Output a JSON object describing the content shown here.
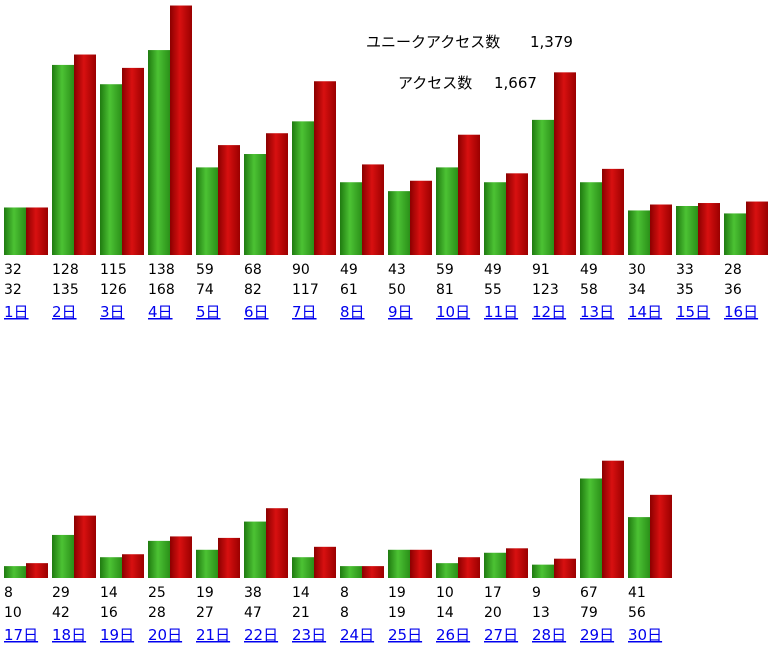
{
  "summary": {
    "unique_label": "ユニークアクセス数",
    "unique_total": "1,379",
    "access_label": "アクセス数",
    "access_total": "1,667"
  },
  "colors": {
    "unique_bar": "#2e9e1e",
    "access_bar": "#c00000"
  },
  "chart_data": {
    "type": "bar",
    "categories": [
      "1日",
      "2日",
      "3日",
      "4日",
      "5日",
      "6日",
      "7日",
      "8日",
      "9日",
      "10日",
      "11日",
      "12日",
      "13日",
      "14日",
      "15日",
      "16日",
      "17日",
      "18日",
      "19日",
      "20日",
      "21日",
      "22日",
      "23日",
      "24日",
      "25日",
      "26日",
      "27日",
      "28日",
      "29日",
      "30日"
    ],
    "series": [
      {
        "name": "ユニークアクセス数",
        "values": [
          32,
          128,
          115,
          138,
          59,
          68,
          90,
          49,
          43,
          59,
          49,
          91,
          49,
          30,
          33,
          28,
          8,
          29,
          14,
          25,
          19,
          38,
          14,
          8,
          19,
          10,
          17,
          9,
          67,
          41
        ]
      },
      {
        "name": "アクセス数",
        "values": [
          32,
          135,
          126,
          168,
          74,
          82,
          117,
          61,
          50,
          81,
          55,
          123,
          58,
          34,
          35,
          36,
          10,
          42,
          16,
          28,
          27,
          47,
          21,
          8,
          19,
          14,
          20,
          13,
          79,
          56
        ]
      }
    ],
    "title": "",
    "xlabel": "",
    "ylabel": ""
  }
}
